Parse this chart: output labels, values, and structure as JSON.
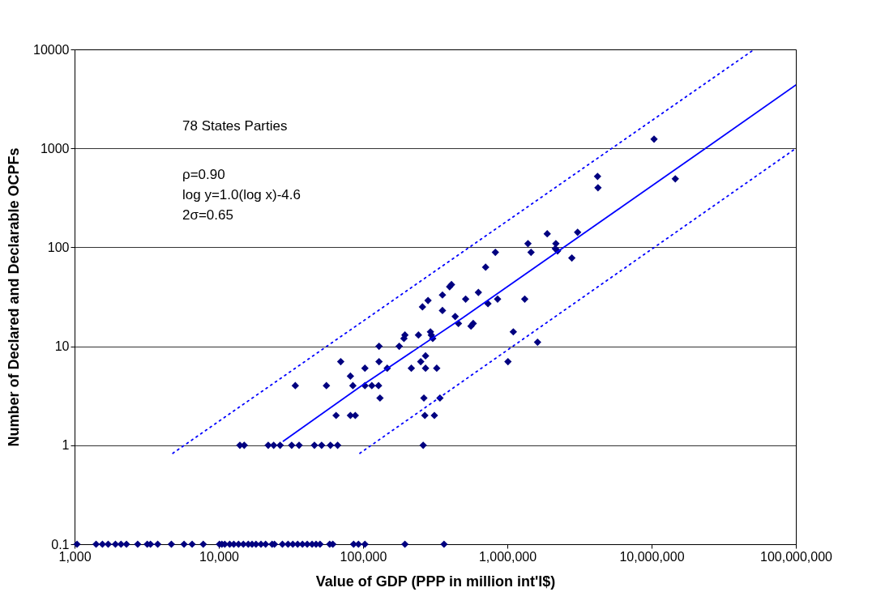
{
  "chart_data": {
    "type": "scatter",
    "xlabel": "Value of GDP (PPP in million int'l$)",
    "ylabel": "Number of Declared and Declarable OCPFs",
    "log": "xy",
    "grid": "y",
    "xlim": [
      1000,
      100000000
    ],
    "ylim": [
      0.1,
      10000
    ],
    "xticks": [
      {
        "value": 1000,
        "label": "1,000"
      },
      {
        "value": 10000,
        "label": "10,000"
      },
      {
        "value": 100000,
        "label": "100,000"
      },
      {
        "value": 1000000,
        "label": "1,000,000"
      },
      {
        "value": 10000000,
        "label": "10,000,000"
      },
      {
        "value": 100000000,
        "label": "100,000,000"
      }
    ],
    "yticks": [
      0.1,
      1,
      10,
      100,
      1000,
      10000
    ],
    "annotations": [
      "78 States Parties",
      "ρ=0.90",
      "log y=1.0(log x)-4.6",
      "2σ=0.65"
    ],
    "series": [
      {
        "color": "#000080",
        "marker": "diamond",
        "x": [
          14000,
          15000,
          22000,
          24000,
          26600,
          32000,
          36000,
          46000,
          51600,
          59400,
          66600,
          261000,
          65000,
          81700,
          88300,
          268000,
          312000,
          131000,
          264000,
          341000,
          33900,
          55700,
          85000,
          103000,
          115000,
          128000,
          81700,
          103000,
          147000,
          216000,
          271000,
          324000,
          70000,
          129000,
          251000,
          271000,
          129000,
          178000,
          192000,
          304000,
          195000,
          242000,
          297000,
          293000,
          10400000,
          4220000,
          4250000,
          14600000,
          1890000,
          3070000,
          1390000,
          2170000,
          1460000,
          2150000,
          2230000,
          2800000,
          826000,
          707000,
          514000,
          630000,
          734000,
          856000,
          1320000,
          458000,
          435000,
          580000,
          560000,
          1100000,
          1620000,
          1010000,
          398000,
          410000,
          355000,
          282000,
          258000,
          355000,
          1040,
          1410,
          1560,
          1710,
          1920,
          2100,
          2290,
          2740,
          3190,
          3360,
          3770,
          4690,
          5740,
          6530,
          7800,
          10100,
          10500,
          11000,
          11900,
          12700,
          13700,
          14800,
          16000,
          17000,
          18100,
          19600,
          21100,
          23400,
          24300,
          27600,
          30200,
          32600,
          35200,
          38000,
          41000,
          44300,
          47200,
          50300,
          58700,
          61700,
          86000,
          92900,
          103000,
          195000,
          364000
        ],
        "values": [
          1,
          1,
          1,
          1,
          1,
          1,
          1,
          1,
          1,
          1,
          1,
          1,
          2,
          2,
          2,
          2,
          2,
          3,
          3,
          3,
          4,
          4,
          4,
          4,
          4,
          4,
          5,
          6,
          6,
          6,
          6,
          6,
          7,
          7,
          7,
          8,
          10,
          10,
          12,
          12,
          13,
          13,
          13,
          14,
          1240,
          521,
          400,
          492,
          137,
          142,
          109,
          109,
          89,
          97,
          92,
          78,
          89,
          63,
          30,
          35,
          27,
          30,
          30,
          17,
          20,
          17,
          16,
          14,
          11,
          7,
          40,
          42,
          33,
          29,
          25,
          23,
          0.1,
          0.1,
          0.1,
          0.1,
          0.1,
          0.1,
          0.1,
          0.1,
          0.1,
          0.1,
          0.1,
          0.1,
          0.1,
          0.1,
          0.1,
          0.1,
          0.1,
          0.1,
          0.1,
          0.1,
          0.1,
          0.1,
          0.1,
          0.1,
          0.1,
          0.1,
          0.1,
          0.1,
          0.1,
          0.1,
          0.1,
          0.1,
          0.1,
          0.1,
          0.1,
          0.1,
          0.1,
          0.1,
          0.1,
          0.1,
          0.1,
          0.1,
          0.1,
          0.1,
          0.1
        ]
      },
      {
        "type": "line",
        "color": "#0000ff",
        "line_style": "solid",
        "x": [
          28000,
          97700,
          488000,
          23300000,
          100000000
        ],
        "values": [
          1.1,
          4,
          19.3,
          984,
          4365
        ]
      },
      {
        "type": "line",
        "color": "#0000ff",
        "line_style": "dotted",
        "x": [
          4800,
          51500000
        ],
        "values": [
          0.83,
          10000
        ]
      },
      {
        "type": "line",
        "color": "#0000ff",
        "line_style": "dotted",
        "x": [
          95000,
          100000000
        ],
        "values": [
          0.83,
          1000
        ]
      }
    ]
  }
}
